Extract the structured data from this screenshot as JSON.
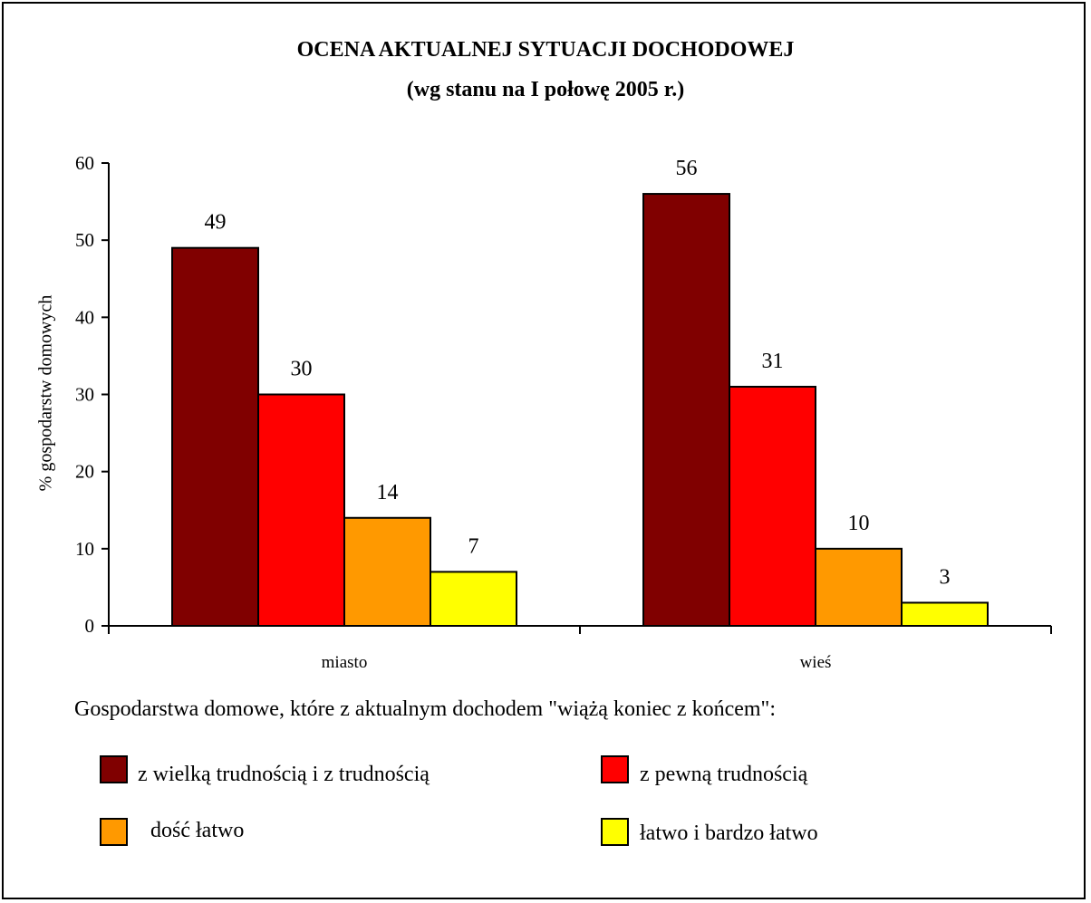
{
  "chart_data": {
    "type": "bar",
    "title": "OCENA AKTUALNEJ SYTUACJI DOCHODOWEJ",
    "subtitle": "(wg stanu na I połowę 2005 r.)",
    "ylabel": "% gospodarstw domowych",
    "ylim": [
      0,
      60
    ],
    "yticks": [
      0,
      10,
      20,
      30,
      40,
      50,
      60
    ],
    "categories": [
      "miasto",
      "wieś"
    ],
    "series": [
      {
        "name": "z wielką trudnością i z trudnością",
        "values": [
          49,
          56
        ],
        "color": "#800000"
      },
      {
        "name": "z pewną trudnością",
        "values": [
          30,
          31
        ],
        "color": "#ff0000"
      },
      {
        "name": "dość łatwo",
        "values": [
          14,
          10
        ],
        "color": "#ff9900"
      },
      {
        "name": "łatwo i bardzo łatwo",
        "values": [
          7,
          3
        ],
        "color": "#ffff00"
      }
    ],
    "legend_title": "Gospodarstwa domowe, które z aktualnym dochodem \"wiążą koniec z końcem\":",
    "legend_placement": "bottom",
    "grid": false
  }
}
